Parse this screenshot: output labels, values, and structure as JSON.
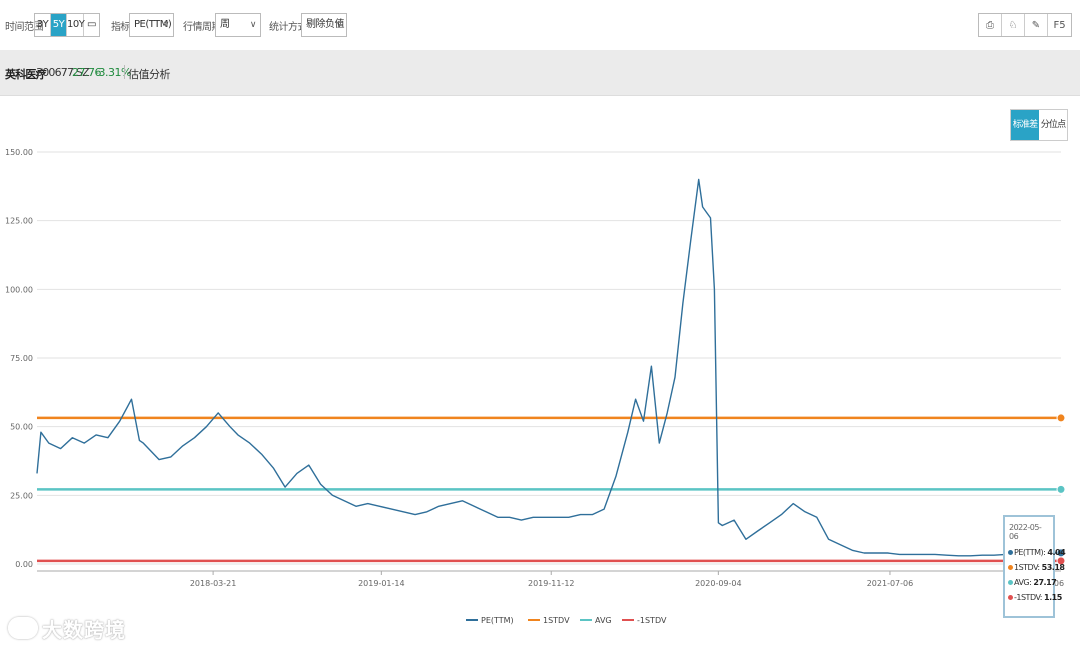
{
  "toolbar": {
    "time_range_label": "时间范围",
    "ranges": [
      "3Y",
      "5Y",
      "10Y"
    ],
    "active_range": "5Y",
    "indicator_label": "指标",
    "indicator_value": "PE(TTM)",
    "period_label": "行情周期",
    "period_value": "周",
    "stat_label": "统计方式",
    "stat_value": "剔除负值",
    "tools": [
      "⎙",
      "♘",
      "✎",
      "F5"
    ]
  },
  "stock": {
    "name": "英科医疗",
    "code": "300677.SZ",
    "price": "27.76",
    "change": "-3.31%",
    "tab": "估值分析"
  },
  "mode": {
    "std": "标准差",
    "pct": "分位点",
    "active": "标准差"
  },
  "tooltip": {
    "date": "2022-05-06",
    "rows": [
      {
        "name": "PE(TTM)",
        "value": "4.04",
        "color": "#2f6f9a"
      },
      {
        "name": "1STDV",
        "value": "53.18",
        "color": "#f0841e"
      },
      {
        "name": "AVG",
        "value": "27.17",
        "color": "#5bc4c4"
      },
      {
        "name": "-1STDV",
        "value": "1.15",
        "color": "#e05050"
      }
    ]
  },
  "watermark": "大数跨境",
  "chart_data": {
    "type": "line",
    "title": "",
    "xlabel": "",
    "ylabel": "",
    "ylim": [
      0,
      150
    ],
    "yticks": [
      "0.00",
      "25.00",
      "50.00",
      "75.00",
      "100.00",
      "125.00",
      "150.00"
    ],
    "x_range": [
      "2017-05-12",
      "2022-05-06"
    ],
    "xticks": [
      "2018-03-21",
      "2019-01-14",
      "2019-11-12",
      "2020-09-04",
      "2021-07-06"
    ],
    "last_tick_partial": "06",
    "legend_position": "bottom",
    "grid": true,
    "series": [
      {
        "name": "PE(TTM)",
        "color": "#2f6f9a",
        "x": [
          "2017-05-12",
          "2017-05-19",
          "2017-06-02",
          "2017-06-23",
          "2017-07-14",
          "2017-08-04",
          "2017-08-25",
          "2017-09-15",
          "2017-10-06",
          "2017-10-27",
          "2017-11-10",
          "2017-11-17",
          "2017-12-01",
          "2017-12-15",
          "2018-01-05",
          "2018-01-26",
          "2018-02-16",
          "2018-03-09",
          "2018-03-30",
          "2018-04-20",
          "2018-05-04",
          "2018-05-25",
          "2018-06-15",
          "2018-07-06",
          "2018-07-27",
          "2018-08-17",
          "2018-09-07",
          "2018-09-28",
          "2018-10-19",
          "2018-11-09",
          "2018-11-30",
          "2018-12-21",
          "2019-01-11",
          "2019-02-01",
          "2019-02-22",
          "2019-03-15",
          "2019-04-05",
          "2019-04-26",
          "2019-05-17",
          "2019-06-07",
          "2019-06-28",
          "2019-07-19",
          "2019-08-09",
          "2019-08-30",
          "2019-09-20",
          "2019-10-11",
          "2019-11-01",
          "2019-11-22",
          "2019-12-13",
          "2020-01-03",
          "2020-01-24",
          "2020-02-14",
          "2020-03-06",
          "2020-03-27",
          "2020-04-10",
          "2020-04-24",
          "2020-05-08",
          "2020-05-22",
          "2020-06-05",
          "2020-06-19",
          "2020-07-03",
          "2020-07-17",
          "2020-07-31",
          "2020-08-07",
          "2020-08-14",
          "2020-08-21",
          "2020-08-28",
          "2020-09-04",
          "2020-09-11",
          "2020-10-02",
          "2020-10-23",
          "2020-11-13",
          "2020-12-04",
          "2020-12-25",
          "2021-01-15",
          "2021-02-05",
          "2021-02-26",
          "2021-03-19",
          "2021-04-09",
          "2021-04-30",
          "2021-05-21",
          "2021-06-11",
          "2021-07-02",
          "2021-07-23",
          "2021-08-13",
          "2021-09-03",
          "2021-09-24",
          "2021-10-15",
          "2021-11-05",
          "2021-11-26",
          "2021-12-17",
          "2022-01-07",
          "2022-01-28",
          "2022-02-18",
          "2022-03-11",
          "2022-04-01",
          "2022-04-22",
          "2022-05-06"
        ],
        "values": [
          33,
          48,
          44,
          42,
          46,
          44,
          47,
          46,
          52,
          60,
          45,
          44,
          41,
          38,
          39,
          43,
          46,
          50,
          55,
          50,
          47,
          44,
          40,
          35,
          28,
          33,
          36,
          29,
          25,
          23,
          21,
          22,
          21,
          20,
          19,
          18,
          19,
          21,
          22,
          23,
          21,
          19,
          17,
          17,
          16,
          17,
          17,
          17,
          17,
          18,
          18,
          20,
          32,
          48,
          60,
          52,
          72,
          44,
          55,
          68,
          95,
          118,
          140,
          130,
          128,
          126,
          100,
          15,
          14,
          16,
          9,
          12,
          15,
          18,
          22,
          19,
          17,
          9,
          7,
          5,
          4,
          4,
          4,
          3.5,
          3.5,
          3.5,
          3.5,
          3.2,
          3,
          3,
          3.2,
          3.2,
          3.5,
          3.5,
          3.8,
          3.8,
          4,
          4.04
        ]
      },
      {
        "name": "1STDV",
        "color": "#f0841e",
        "value": 53.18
      },
      {
        "name": "AVG",
        "color": "#5bc4c4",
        "value": 27.17
      },
      {
        "name": "-1STDV",
        "color": "#e05050",
        "value": 1.15
      }
    ]
  }
}
